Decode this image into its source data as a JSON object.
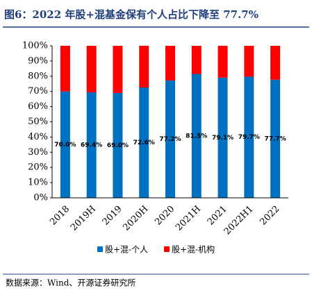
{
  "chart_data": {
    "type": "stacked_bar",
    "title": "图6：2022 年股+混基金保有个人占比下降至 77.7%",
    "source": "数据来源：Wind、开源证券研究所",
    "categories": [
      "2018",
      "2019H",
      "2019",
      "2020H",
      "2020",
      "2021H",
      "2021",
      "2022H1",
      "2022"
    ],
    "series": [
      {
        "name": "股+混-个人",
        "color": "#0070c0",
        "values": [
          70.0,
          69.4,
          69.0,
          72.6,
          77.2,
          81.5,
          79.1,
          79.7,
          77.7
        ],
        "value_labels": [
          "70.0%",
          "69.4%",
          "69.0%",
          "72.6%",
          "77.2%",
          "81.5%",
          "79.1%",
          "79.7%",
          "77.7%"
        ]
      },
      {
        "name": "股+混-机构",
        "color": "#ff0000",
        "values": [
          30.0,
          30.6,
          31.0,
          27.4,
          22.8,
          18.5,
          20.9,
          20.3,
          22.3
        ]
      }
    ],
    "ylim": [
      0,
      100
    ],
    "yticks": [
      {
        "value": 0,
        "label": "0%"
      },
      {
        "value": 10,
        "label": "10%"
      },
      {
        "value": 20,
        "label": "20%"
      },
      {
        "value": 30,
        "label": "30%"
      },
      {
        "value": 40,
        "label": "40%"
      },
      {
        "value": 50,
        "label": "50%"
      },
      {
        "value": 60,
        "label": "60%"
      },
      {
        "value": 70,
        "label": "70%"
      },
      {
        "value": 80,
        "label": "80%"
      },
      {
        "value": 90,
        "label": "90%"
      },
      {
        "value": 100,
        "label": "100%"
      }
    ],
    "grid": false
  }
}
